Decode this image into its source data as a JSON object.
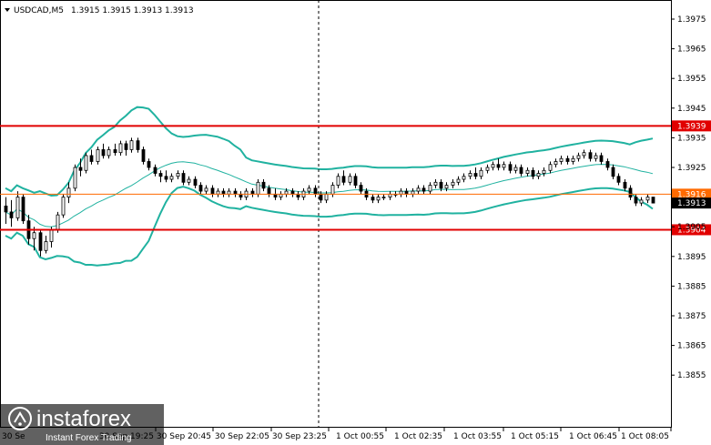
{
  "header": {
    "symbol": "USDCAD,M5",
    "ohlc": "1.3915 1.3915 1.3913 1.3913"
  },
  "chart_data": {
    "type": "candlestick",
    "symbol": "USDCAD",
    "timeframe": "M5",
    "ylim": [
      1.3845,
      1.3985
    ],
    "y_ticks": [
      "1.3975",
      "1.3965",
      "1.3955",
      "1.3945",
      "1.3935",
      "1.3925",
      "1.3905",
      "1.3895",
      "1.3885",
      "1.3875",
      "1.3865",
      "1.3855"
    ],
    "x_ticks": [
      "30 Sep 19:25",
      "30 Sep 20:45",
      "30 Sep 22:05",
      "30 Sep 23:25",
      "1 Oct 00:55",
      "1 Oct 02:35",
      "1 Oct 03:55",
      "1 Oct 05:15",
      "1 Oct 06:45",
      "1 Oct 08:05"
    ],
    "x_tick_first_partial": "30 Se",
    "levels": [
      {
        "value": 1.3939,
        "label": "1.3939",
        "color": "#e10000"
      },
      {
        "value": 1.3904,
        "label": "1.3904",
        "color": "#e10000"
      },
      {
        "value": 1.3916,
        "label": "1.3916",
        "color": "#ff6a00"
      }
    ],
    "current_price": {
      "value": 1.3913,
      "label": "1.3913"
    },
    "session_separator": "30 Sep 23:25",
    "bollinger": {
      "color": "#20b2a0"
    },
    "candles_ohlc": [
      [
        1.3912,
        1.3915,
        1.3906,
        1.391
      ],
      [
        1.391,
        1.3914,
        1.3905,
        1.3908
      ],
      [
        1.3908,
        1.3917,
        1.3907,
        1.3915
      ],
      [
        1.3915,
        1.3916,
        1.3906,
        1.3907
      ],
      [
        1.3907,
        1.3909,
        1.3899,
        1.3901
      ],
      [
        1.3901,
        1.3905,
        1.3897,
        1.3903
      ],
      [
        1.3903,
        1.3904,
        1.3895,
        1.3897
      ],
      [
        1.3897,
        1.3902,
        1.3896,
        1.39
      ],
      [
        1.39,
        1.3905,
        1.3898,
        1.3904
      ],
      [
        1.3904,
        1.391,
        1.3903,
        1.3909
      ],
      [
        1.3909,
        1.3916,
        1.3908,
        1.3915
      ],
      [
        1.3915,
        1.392,
        1.3913,
        1.3918
      ],
      [
        1.3918,
        1.3926,
        1.3917,
        1.3925
      ],
      [
        1.3925,
        1.3928,
        1.3922,
        1.3924
      ],
      [
        1.3924,
        1.393,
        1.3923,
        1.3929
      ],
      [
        1.3929,
        1.3931,
        1.3926,
        1.3927
      ],
      [
        1.3927,
        1.3932,
        1.3926,
        1.3931
      ],
      [
        1.3931,
        1.3933,
        1.3928,
        1.3929
      ],
      [
        1.3929,
        1.3932,
        1.3928,
        1.3931
      ],
      [
        1.3931,
        1.3933,
        1.3929,
        1.393
      ],
      [
        1.393,
        1.3934,
        1.3929,
        1.3933
      ],
      [
        1.3933,
        1.3934,
        1.3929,
        1.3931
      ],
      [
        1.3931,
        1.3935,
        1.393,
        1.3934
      ],
      [
        1.3934,
        1.3935,
        1.393,
        1.3931
      ],
      [
        1.3931,
        1.3932,
        1.3926,
        1.3927
      ],
      [
        1.3927,
        1.3928,
        1.3924,
        1.3925
      ],
      [
        1.3925,
        1.3926,
        1.3922,
        1.3923
      ],
      [
        1.3923,
        1.3924,
        1.392,
        1.3922
      ],
      [
        1.3922,
        1.3924,
        1.392,
        1.3921
      ],
      [
        1.3921,
        1.3923,
        1.392,
        1.3922
      ],
      [
        1.3922,
        1.3924,
        1.3921,
        1.3923
      ],
      [
        1.3923,
        1.3924,
        1.3919,
        1.392
      ],
      [
        1.392,
        1.3922,
        1.3919,
        1.3921
      ],
      [
        1.3921,
        1.3922,
        1.3918,
        1.3919
      ],
      [
        1.3919,
        1.392,
        1.3916,
        1.3917
      ],
      [
        1.3917,
        1.3919,
        1.3916,
        1.3918
      ],
      [
        1.3918,
        1.3919,
        1.3915,
        1.3916
      ],
      [
        1.3916,
        1.3918,
        1.3915,
        1.3917
      ],
      [
        1.3917,
        1.3918,
        1.3915,
        1.3916
      ],
      [
        1.3916,
        1.3918,
        1.3915,
        1.3917
      ],
      [
        1.3917,
        1.3918,
        1.3915,
        1.3916
      ],
      [
        1.3916,
        1.3917,
        1.3914,
        1.3915
      ],
      [
        1.3915,
        1.3918,
        1.3914,
        1.3917
      ],
      [
        1.3917,
        1.3918,
        1.3915,
        1.3916
      ],
      [
        1.3916,
        1.3921,
        1.3915,
        1.392
      ],
      [
        1.392,
        1.3921,
        1.3917,
        1.3918
      ],
      [
        1.3918,
        1.3919,
        1.3915,
        1.3916
      ],
      [
        1.3916,
        1.3918,
        1.3914,
        1.3915
      ],
      [
        1.3915,
        1.3917,
        1.3914,
        1.3916
      ],
      [
        1.3916,
        1.3918,
        1.3915,
        1.3917
      ],
      [
        1.3917,
        1.3918,
        1.3915,
        1.3916
      ],
      [
        1.3916,
        1.3917,
        1.3914,
        1.3915
      ],
      [
        1.3915,
        1.3918,
        1.3914,
        1.3917
      ],
      [
        1.3917,
        1.3919,
        1.3916,
        1.3918
      ],
      [
        1.3918,
        1.3919,
        1.3915,
        1.3916
      ],
      [
        1.3916,
        1.3917,
        1.3913,
        1.3914
      ],
      [
        1.3914,
        1.3917,
        1.3913,
        1.3916
      ],
      [
        1.3916,
        1.392,
        1.3915,
        1.3919
      ],
      [
        1.3919,
        1.3923,
        1.3918,
        1.3922
      ],
      [
        1.3922,
        1.3924,
        1.3919,
        1.392
      ],
      [
        1.392,
        1.3923,
        1.3919,
        1.3922
      ],
      [
        1.3922,
        1.3923,
        1.3918,
        1.3919
      ],
      [
        1.3919,
        1.392,
        1.3916,
        1.3917
      ],
      [
        1.3917,
        1.3918,
        1.3914,
        1.3915
      ],
      [
        1.3915,
        1.3916,
        1.3913,
        1.3914
      ],
      [
        1.3914,
        1.3916,
        1.3913,
        1.3915
      ],
      [
        1.3915,
        1.3916,
        1.3914,
        1.3915
      ],
      [
        1.3915,
        1.3917,
        1.3914,
        1.3916
      ],
      [
        1.3916,
        1.3917,
        1.3915,
        1.3916
      ],
      [
        1.3916,
        1.3918,
        1.3915,
        1.3917
      ],
      [
        1.3917,
        1.3918,
        1.3915,
        1.3916
      ],
      [
        1.3916,
        1.3918,
        1.3915,
        1.3917
      ],
      [
        1.3917,
        1.3919,
        1.3916,
        1.3918
      ],
      [
        1.3918,
        1.3919,
        1.3916,
        1.3917
      ],
      [
        1.3917,
        1.392,
        1.3916,
        1.3919
      ],
      [
        1.3919,
        1.3921,
        1.3918,
        1.392
      ],
      [
        1.392,
        1.3921,
        1.3917,
        1.3918
      ],
      [
        1.3918,
        1.392,
        1.3917,
        1.3919
      ],
      [
        1.3919,
        1.3921,
        1.3918,
        1.392
      ],
      [
        1.392,
        1.3922,
        1.3919,
        1.3921
      ],
      [
        1.3921,
        1.3923,
        1.392,
        1.3922
      ],
      [
        1.3922,
        1.3924,
        1.3921,
        1.3923
      ],
      [
        1.3923,
        1.3925,
        1.3921,
        1.3922
      ],
      [
        1.3922,
        1.3925,
        1.3921,
        1.3924
      ],
      [
        1.3924,
        1.3926,
        1.3923,
        1.3925
      ],
      [
        1.3925,
        1.3927,
        1.3924,
        1.3926
      ],
      [
        1.3926,
        1.3928,
        1.3924,
        1.3925
      ],
      [
        1.3925,
        1.3927,
        1.3924,
        1.3926
      ],
      [
        1.3926,
        1.3927,
        1.3923,
        1.3924
      ],
      [
        1.3924,
        1.3926,
        1.3923,
        1.3925
      ],
      [
        1.3925,
        1.3926,
        1.3922,
        1.3923
      ],
      [
        1.3923,
        1.3925,
        1.3922,
        1.3924
      ],
      [
        1.3924,
        1.3925,
        1.3921,
        1.3922
      ],
      [
        1.3922,
        1.3924,
        1.3921,
        1.3923
      ],
      [
        1.3923,
        1.3925,
        1.3922,
        1.3924
      ],
      [
        1.3924,
        1.3927,
        1.3923,
        1.3926
      ],
      [
        1.3926,
        1.3928,
        1.3925,
        1.3927
      ],
      [
        1.3927,
        1.3929,
        1.3926,
        1.3928
      ],
      [
        1.3928,
        1.3929,
        1.3926,
        1.3927
      ],
      [
        1.3927,
        1.3929,
        1.3926,
        1.3928
      ],
      [
        1.3928,
        1.393,
        1.3927,
        1.3929
      ],
      [
        1.3929,
        1.3931,
        1.3928,
        1.393
      ],
      [
        1.393,
        1.3931,
        1.3927,
        1.3928
      ],
      [
        1.3928,
        1.393,
        1.3927,
        1.3929
      ],
      [
        1.3929,
        1.393,
        1.3926,
        1.3927
      ],
      [
        1.3927,
        1.3928,
        1.3924,
        1.3925
      ],
      [
        1.3925,
        1.3926,
        1.3921,
        1.3922
      ],
      [
        1.3922,
        1.3923,
        1.3919,
        1.392
      ],
      [
        1.392,
        1.3921,
        1.3917,
        1.3918
      ],
      [
        1.3918,
        1.3919,
        1.3914,
        1.3915
      ],
      [
        1.3915,
        1.3916,
        1.3912,
        1.3913
      ],
      [
        1.3913,
        1.3915,
        1.3912,
        1.3914
      ],
      [
        1.3914,
        1.3916,
        1.3913,
        1.3915
      ],
      [
        1.3915,
        1.3915,
        1.3913,
        1.3913
      ]
    ]
  },
  "watermark": {
    "brand": "instaforex",
    "tagline": "Instant Forex Trading"
  },
  "colors": {
    "background": "#ffffff",
    "candle": "#000000",
    "bands": "#20b2a0",
    "level_red": "#e10000",
    "level_orange": "#ff6a00",
    "separator": "#000000"
  }
}
